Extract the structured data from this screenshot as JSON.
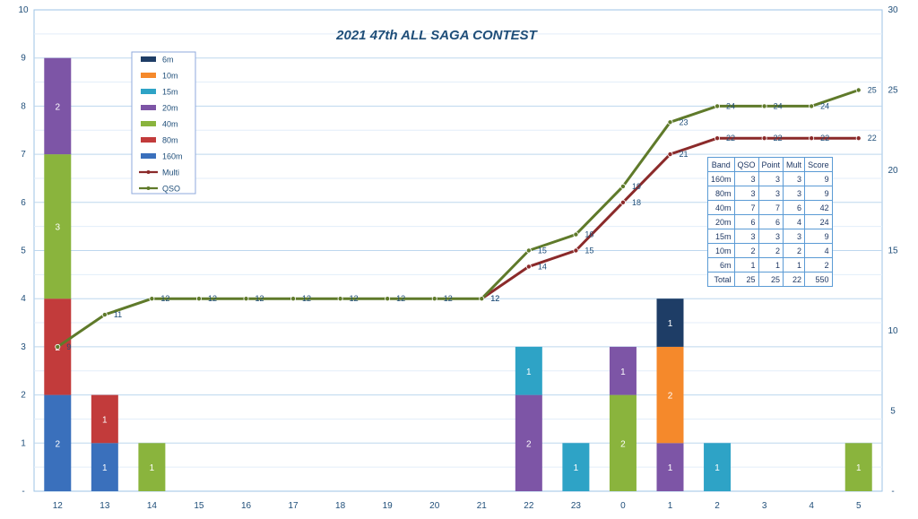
{
  "chart_data": {
    "type": "bar",
    "title": "2021 47th ALL SAGA CONTEST",
    "categories": [
      "12",
      "13",
      "14",
      "15",
      "16",
      "17",
      "18",
      "19",
      "20",
      "21",
      "22",
      "23",
      "0",
      "1",
      "2",
      "3",
      "4",
      "5"
    ],
    "ylim": [
      0,
      10
    ],
    "y_ticks": [
      "0",
      "1",
      "2",
      "3",
      "4",
      "5",
      "6",
      "7",
      "8",
      "9",
      "10"
    ],
    "y2lim": [
      0,
      30
    ],
    "y2_ticks": [
      "0",
      "5",
      "10",
      "15",
      "20",
      "25",
      "30"
    ],
    "grid": true,
    "legend_position": "top-left",
    "series": [
      {
        "name": "160m",
        "kind": "bar",
        "color": "#3a70bc",
        "values": [
          2,
          1,
          0,
          0,
          0,
          0,
          0,
          0,
          0,
          0,
          0,
          0,
          0,
          0,
          0,
          0,
          0,
          0
        ]
      },
      {
        "name": "80m",
        "kind": "bar",
        "color": "#c23b3b",
        "values": [
          2,
          1,
          0,
          0,
          0,
          0,
          0,
          0,
          0,
          0,
          0,
          0,
          0,
          0,
          0,
          0,
          0,
          0
        ]
      },
      {
        "name": "40m",
        "kind": "bar",
        "color": "#8ab43d",
        "values": [
          3,
          0,
          1,
          0,
          0,
          0,
          0,
          0,
          0,
          0,
          0,
          0,
          2,
          0,
          0,
          0,
          0,
          1
        ]
      },
      {
        "name": "20m",
        "kind": "bar",
        "color": "#7d55a6",
        "values": [
          2,
          0,
          0,
          0,
          0,
          0,
          0,
          0,
          0,
          0,
          2,
          0,
          1,
          1,
          0,
          0,
          0,
          0
        ]
      },
      {
        "name": "15m",
        "kind": "bar",
        "color": "#2ea3c6",
        "values": [
          0,
          0,
          0,
          0,
          0,
          0,
          0,
          0,
          0,
          0,
          1,
          1,
          0,
          0,
          1,
          0,
          0,
          0
        ]
      },
      {
        "name": "10m",
        "kind": "bar",
        "color": "#f5892b",
        "values": [
          0,
          0,
          0,
          0,
          0,
          0,
          0,
          0,
          0,
          0,
          0,
          0,
          0,
          2,
          0,
          0,
          0,
          0
        ]
      },
      {
        "name": "6m",
        "kind": "bar",
        "color": "#1e3d66",
        "values": [
          0,
          0,
          0,
          0,
          0,
          0,
          0,
          0,
          0,
          0,
          0,
          0,
          0,
          1,
          0,
          0,
          0,
          0
        ]
      },
      {
        "name": "Multi",
        "kind": "line",
        "axis": "right",
        "color": "#8b2a2a",
        "values": [
          null,
          null,
          null,
          null,
          null,
          null,
          null,
          null,
          null,
          12,
          14,
          15,
          18,
          21,
          22,
          22,
          22,
          22
        ]
      },
      {
        "name": "QSO",
        "kind": "line",
        "axis": "right",
        "color": "#5f7a2a",
        "values": [
          9,
          11,
          12,
          12,
          12,
          12,
          12,
          12,
          12,
          12,
          15,
          16,
          19,
          23,
          24,
          24,
          24,
          25
        ]
      }
    ],
    "table": {
      "headers": [
        "Band",
        "QSO",
        "Point",
        "Mult",
        "Score"
      ],
      "rows": [
        [
          "160m",
          "3",
          "3",
          "3",
          "9"
        ],
        [
          "80m",
          "3",
          "3",
          "3",
          "9"
        ],
        [
          "40m",
          "7",
          "7",
          "6",
          "42"
        ],
        [
          "20m",
          "6",
          "6",
          "4",
          "24"
        ],
        [
          "15m",
          "3",
          "3",
          "3",
          "9"
        ],
        [
          "10m",
          "2",
          "2",
          "2",
          "4"
        ],
        [
          "6m",
          "1",
          "1",
          "1",
          "2"
        ],
        [
          "Total",
          "25",
          "25",
          "22",
          "550"
        ]
      ]
    }
  }
}
